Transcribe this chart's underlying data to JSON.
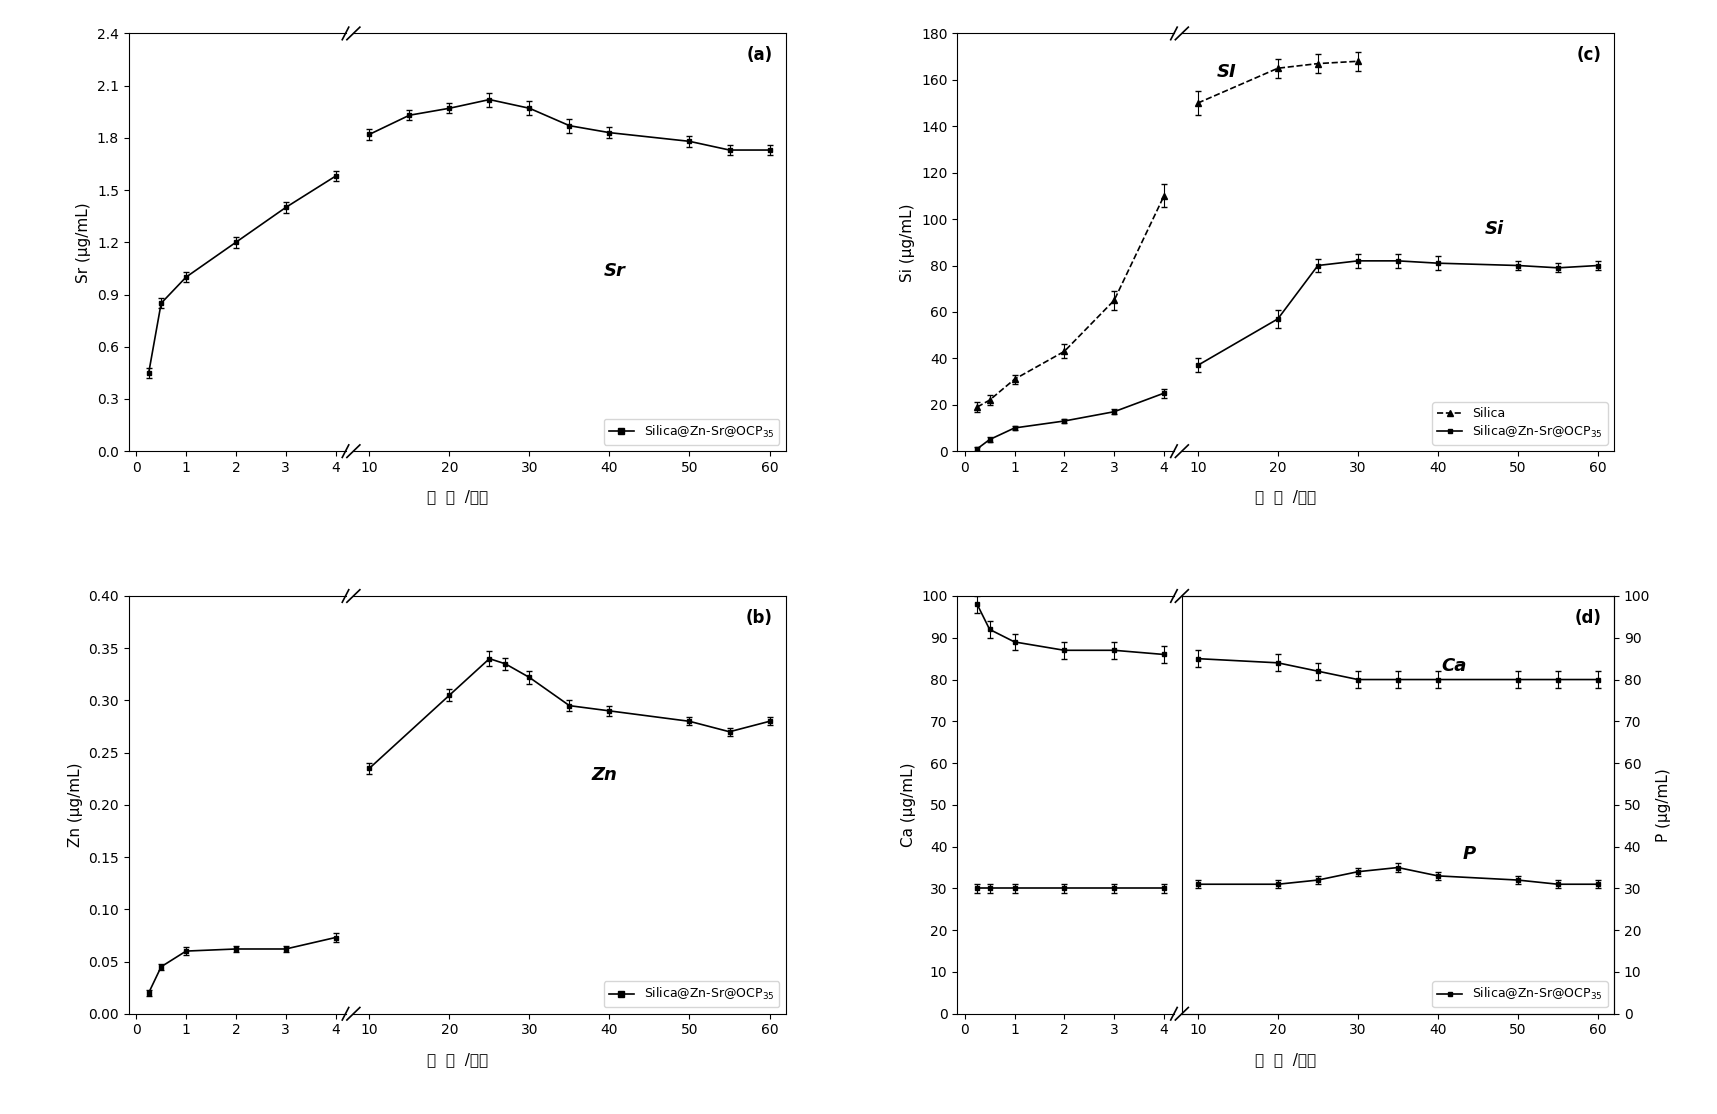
{
  "panel_a": {
    "label": "(a)",
    "ylabel": "Sr (μg/mL)",
    "xlabel": "时  间  /小时",
    "ylim": [
      0.0,
      2.4
    ],
    "yticks": [
      0.0,
      0.3,
      0.6,
      0.9,
      1.2,
      1.5,
      1.8,
      2.1,
      2.4
    ],
    "legend": "Silica@Zn-Sr@OCP$_{35}$",
    "annotation": "Sr",
    "x": [
      0.25,
      0.5,
      1,
      2,
      3,
      4,
      10,
      15,
      20,
      25,
      30,
      35,
      40,
      50,
      55,
      60
    ],
    "y": [
      0.45,
      0.85,
      1.0,
      1.2,
      1.4,
      1.58,
      1.82,
      1.93,
      1.97,
      2.02,
      1.97,
      1.87,
      1.83,
      1.78,
      1.73,
      1.73
    ],
    "yerr": [
      0.03,
      0.03,
      0.03,
      0.03,
      0.03,
      0.03,
      0.03,
      0.03,
      0.03,
      0.04,
      0.04,
      0.04,
      0.03,
      0.03,
      0.03,
      0.03
    ]
  },
  "panel_b": {
    "label": "(b)",
    "ylabel": "Zn (μg/mL)",
    "xlabel": "时  间  /小时",
    "ylim": [
      0.0,
      0.4
    ],
    "yticks": [
      0.0,
      0.05,
      0.1,
      0.15,
      0.2,
      0.25,
      0.3,
      0.35,
      0.4
    ],
    "legend": "Silica@Zn-Sr@OCP$_{35}$",
    "annotation": "Zn",
    "x": [
      0.25,
      0.5,
      1,
      2,
      3,
      4,
      10,
      20,
      25,
      27,
      30,
      35,
      40,
      50,
      55,
      60
    ],
    "y": [
      0.02,
      0.045,
      0.06,
      0.062,
      0.062,
      0.073,
      0.235,
      0.305,
      0.34,
      0.335,
      0.322,
      0.295,
      0.29,
      0.28,
      0.27,
      0.28
    ],
    "yerr": [
      0.003,
      0.003,
      0.004,
      0.003,
      0.003,
      0.004,
      0.005,
      0.006,
      0.007,
      0.006,
      0.006,
      0.005,
      0.005,
      0.004,
      0.004,
      0.004
    ]
  },
  "panel_c": {
    "label": "(c)",
    "ylabel": "Si (μg/mL)",
    "xlabel": "时  间  /小时",
    "ylim": [
      0,
      180
    ],
    "yticks": [
      0,
      20,
      40,
      60,
      80,
      100,
      120,
      140,
      160,
      180
    ],
    "legend_silica": "Silica",
    "legend_composite": "Silica@Zn-Sr@OCP$_{35}$",
    "annotation_silica": "SI",
    "annotation_composite": "Si",
    "x_silica": [
      0.25,
      0.5,
      1,
      2,
      3,
      4,
      10,
      20,
      25,
      30
    ],
    "y_silica": [
      19,
      22,
      31,
      43,
      65,
      110,
      150,
      165,
      167,
      168
    ],
    "yerr_silica": [
      2,
      2,
      2,
      3,
      4,
      5,
      5,
      4,
      4,
      4
    ],
    "x_composite": [
      0.25,
      0.5,
      1,
      2,
      3,
      4,
      10,
      20,
      25,
      30,
      35,
      40,
      50,
      55,
      60
    ],
    "y_composite": [
      1,
      5,
      10,
      13,
      17,
      25,
      37,
      57,
      80,
      82,
      82,
      81,
      80,
      79,
      80
    ],
    "yerr_composite": [
      1,
      1,
      1,
      1,
      1,
      2,
      3,
      4,
      3,
      3,
      3,
      3,
      2,
      2,
      2
    ]
  },
  "panel_d": {
    "label": "(d)",
    "ylabel": "Ca (μg/mL)",
    "ylabel2": "P (μg/mL)",
    "xlabel": "时  间  /小时",
    "ylim_ca": [
      0,
      100
    ],
    "yticks_ca": [
      0,
      10,
      20,
      30,
      40,
      50,
      60,
      70,
      80,
      90,
      100
    ],
    "ylim_p": [
      0,
      100
    ],
    "yticks_p": [
      0,
      10,
      20,
      30,
      40,
      50,
      60,
      70,
      80,
      90,
      100
    ],
    "annotation_ca": "Ca",
    "annotation_p": "P",
    "legend": "Silica@Zn-Sr@OCP$_{35}$",
    "x_ca": [
      0.25,
      0.5,
      1,
      2,
      3,
      4,
      10,
      20,
      25,
      30,
      35,
      40,
      50,
      55,
      60
    ],
    "y_ca": [
      98,
      92,
      89,
      87,
      87,
      86,
      85,
      84,
      82,
      80,
      80,
      80,
      80,
      80,
      80
    ],
    "yerr_ca": [
      2,
      2,
      2,
      2,
      2,
      2,
      2,
      2,
      2,
      2,
      2,
      2,
      2,
      2,
      2
    ],
    "x_p": [
      0.25,
      0.5,
      1,
      2,
      3,
      4,
      10,
      20,
      25,
      30,
      35,
      40,
      50,
      55,
      60
    ],
    "y_p": [
      30,
      30,
      30,
      30,
      30,
      30,
      31,
      31,
      32,
      34,
      35,
      33,
      32,
      31,
      31
    ],
    "yerr_p": [
      1,
      1,
      1,
      1,
      1,
      1,
      1,
      1,
      1,
      1,
      1,
      1,
      1,
      1,
      1
    ]
  },
  "line_color": "#000000",
  "bg_color": "#ffffff",
  "fontsize_label": 11,
  "fontsize_tick": 10,
  "fontsize_legend": 9,
  "fontsize_annotation": 13
}
